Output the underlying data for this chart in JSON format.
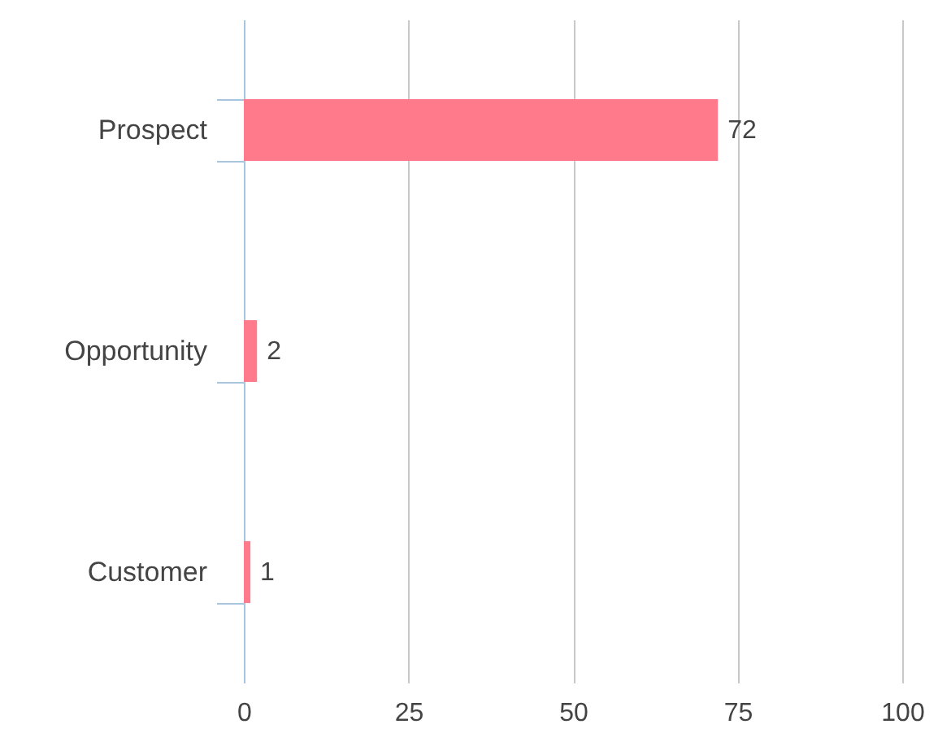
{
  "chart_data": {
    "type": "bar",
    "orientation": "horizontal",
    "categories": [
      "Prospect",
      "Opportunity",
      "Customer"
    ],
    "values": [
      72,
      2,
      1
    ],
    "color": "#ff7b8c",
    "xlim": [
      0,
      100
    ],
    "xticks": [
      0,
      25,
      50,
      75,
      100
    ],
    "grid": "x",
    "data_labels": true
  }
}
